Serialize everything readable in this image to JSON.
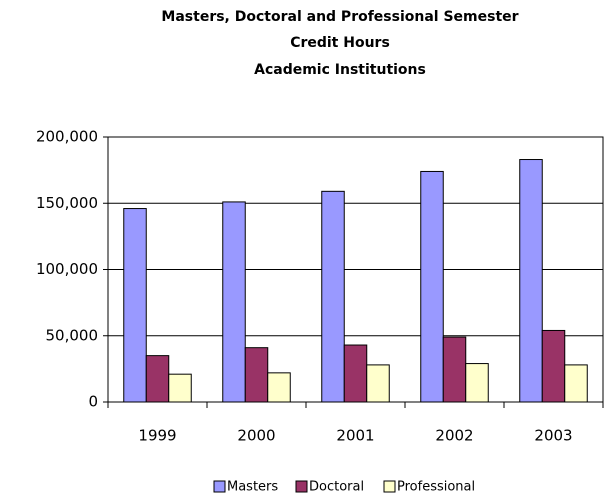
{
  "chart_data": {
    "type": "bar",
    "title": [
      "Masters, Doctoral and Professional Semester",
      "Credit Hours",
      "Academic Institutions"
    ],
    "categories": [
      "1999",
      "2000",
      "2001",
      "2002",
      "2003"
    ],
    "series": [
      {
        "name": "Masters",
        "color": "#9999ff",
        "values": [
          146000,
          151000,
          159000,
          174000,
          183000
        ]
      },
      {
        "name": "Doctoral",
        "color": "#993366",
        "values": [
          35000,
          41000,
          43000,
          49000,
          54000
        ]
      },
      {
        "name": "Professional",
        "color": "#ffffcc",
        "values": [
          21000,
          22000,
          28000,
          29000,
          28000
        ]
      }
    ],
    "ylim": [
      0,
      200000
    ],
    "yticks": [
      0,
      {
        "value": 50000,
        "label": "50,000"
      },
      {
        "value": 100000,
        "label": "100,000"
      },
      {
        "value": 150000,
        "label": "150,000"
      },
      {
        "value": 200000,
        "label": "200,000"
      }
    ],
    "grid": true,
    "legend": "bottom"
  }
}
